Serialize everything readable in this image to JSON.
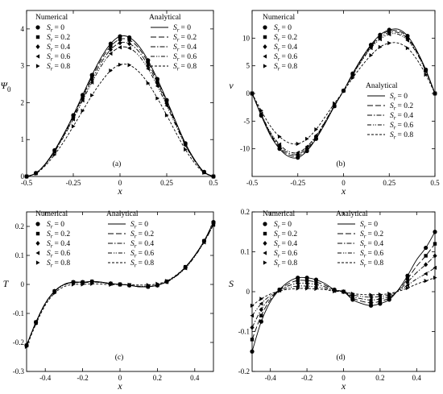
{
  "legend_labels": {
    "numerical": "Numerical",
    "analytical": "Analytical",
    "sym": "S",
    "sub": "r",
    "values": [
      "= 0",
      "= 0.2",
      "= 0.4",
      "= 0.6",
      "= 0.8"
    ]
  },
  "chart_data": [
    {
      "type": "line",
      "panel_label": "(a)",
      "xlabel": "x",
      "ylabel": "Ψ",
      "ylabel_sub": "0",
      "xlim": [
        -0.5,
        0.5
      ],
      "ylim": [
        0,
        4.5
      ],
      "xticks": [
        -0.5,
        -0.25,
        0,
        0.25,
        0.5
      ],
      "xtick_labels": [
        "-0.5",
        "-0.25",
        "0",
        "0.25",
        "0.5"
      ],
      "yticks": [
        0,
        1,
        2,
        3,
        4
      ],
      "ytick_labels": [
        "0",
        "1",
        "2",
        "3",
        "4"
      ],
      "legend_numerical": "top-left",
      "legend_analytical": "top-right",
      "x": [
        -0.5,
        -0.45,
        -0.4,
        -0.35,
        -0.3,
        -0.25,
        -0.2,
        -0.15,
        -0.1,
        -0.05,
        0,
        0.05,
        0.1,
        0.15,
        0.2,
        0.25,
        0.3,
        0.35,
        0.4,
        0.45,
        0.5
      ],
      "series": [
        {
          "name": "Sr = 0",
          "values": [
            0,
            0.09,
            0.34,
            0.71,
            1.16,
            1.66,
            2.21,
            2.75,
            3.23,
            3.6,
            3.8,
            3.77,
            3.54,
            3.15,
            2.64,
            2.07,
            1.47,
            0.9,
            0.45,
            0.12,
            0
          ]
        },
        {
          "name": "Sr = 0.2",
          "values": [
            0,
            0.09,
            0.34,
            0.7,
            1.14,
            1.64,
            2.17,
            2.7,
            3.17,
            3.53,
            3.72,
            3.7,
            3.48,
            3.09,
            2.59,
            2.03,
            1.44,
            0.88,
            0.44,
            0.12,
            0
          ]
        },
        {
          "name": "Sr = 0.4",
          "values": [
            0,
            0.09,
            0.33,
            0.69,
            1.12,
            1.6,
            2.12,
            2.63,
            3.09,
            3.44,
            3.62,
            3.6,
            3.39,
            3.01,
            2.53,
            1.98,
            1.41,
            0.86,
            0.43,
            0.12,
            0
          ]
        },
        {
          "name": "Sr = 0.6",
          "values": [
            0,
            0.09,
            0.32,
            0.67,
            1.09,
            1.55,
            2.06,
            2.55,
            3.0,
            3.33,
            3.5,
            3.48,
            3.28,
            2.92,
            2.45,
            1.92,
            1.37,
            0.84,
            0.42,
            0.11,
            0
          ]
        },
        {
          "name": "Sr = 0.8",
          "values": [
            0,
            0.08,
            0.29,
            0.59,
            0.95,
            1.36,
            1.78,
            2.2,
            2.57,
            2.87,
            3.03,
            3.02,
            2.84,
            2.53,
            2.12,
            1.66,
            1.18,
            0.73,
            0.36,
            0.1,
            0
          ]
        }
      ]
    },
    {
      "type": "line",
      "panel_label": "(b)",
      "xlabel": "x",
      "ylabel": "v",
      "xlim": [
        -0.5,
        0.5
      ],
      "ylim": [
        -15,
        15
      ],
      "xticks": [
        -0.5,
        -0.25,
        0,
        0.25,
        0.5
      ],
      "xtick_labels": [
        "-0.5",
        "-0.25",
        "0",
        "0.25",
        "0.5"
      ],
      "yticks": [
        -10,
        -5,
        0,
        5,
        10
      ],
      "ytick_labels": [
        "-10",
        "-5",
        "0",
        "5",
        "10"
      ],
      "legend_numerical": "top-left",
      "legend_analytical": "right",
      "x": [
        -0.5,
        -0.45,
        -0.4,
        -0.35,
        -0.3,
        -0.25,
        -0.2,
        -0.15,
        -0.1,
        -0.05,
        0,
        0.05,
        0.1,
        0.15,
        0.2,
        0.25,
        0.3,
        0.35,
        0.4,
        0.45,
        0.5
      ],
      "series": [
        {
          "name": "Sr = 0",
          "values": [
            0,
            -4.0,
            -7.6,
            -10.0,
            -11.4,
            -11.6,
            -10.4,
            -8.2,
            -5.4,
            -2.3,
            0.5,
            3.6,
            6.4,
            8.8,
            10.6,
            11.5,
            11.6,
            10.4,
            7.8,
            4.3,
            0
          ]
        },
        {
          "name": "Sr = 0.2",
          "values": [
            0,
            -3.9,
            -7.4,
            -9.8,
            -11.1,
            -11.3,
            -10.2,
            -8.0,
            -5.3,
            -2.3,
            0.5,
            3.5,
            6.3,
            8.6,
            10.4,
            11.3,
            11.3,
            10.2,
            7.7,
            4.2,
            0
          ]
        },
        {
          "name": "Sr = 0.4",
          "values": [
            0,
            -3.8,
            -7.2,
            -9.5,
            -10.8,
            -11.0,
            -9.9,
            -7.8,
            -5.1,
            -2.2,
            0.5,
            3.4,
            6.1,
            8.4,
            10.1,
            11.0,
            11.0,
            9.9,
            7.5,
            4.1,
            0
          ]
        },
        {
          "name": "Sr = 0.6",
          "values": [
            0,
            -3.7,
            -7.0,
            -9.2,
            -10.5,
            -10.7,
            -9.6,
            -7.6,
            -5.0,
            -2.1,
            0.5,
            3.3,
            5.9,
            8.2,
            9.8,
            10.7,
            10.7,
            9.6,
            7.3,
            4.0,
            0
          ]
        },
        {
          "name": "Sr = 0.8",
          "values": [
            0,
            -3.1,
            -5.9,
            -7.8,
            -8.9,
            -9.1,
            -8.2,
            -6.5,
            -4.2,
            -1.8,
            0.4,
            2.8,
            5.0,
            6.9,
            8.4,
            9.1,
            9.1,
            8.2,
            6.2,
            3.4,
            0
          ]
        }
      ]
    },
    {
      "type": "line",
      "panel_label": "(c)",
      "xlabel": "x",
      "ylabel": "T",
      "xlim": [
        -0.5,
        0.5
      ],
      "ylim": [
        -0.3,
        0.25
      ],
      "xticks": [
        -0.4,
        -0.2,
        0,
        0.2,
        0.4
      ],
      "xtick_labels": [
        "-0.4",
        "-0.2",
        "0",
        "0.2",
        "0.4"
      ],
      "yticks": [
        -0.3,
        -0.2,
        -0.1,
        0,
        0.1,
        0.2
      ],
      "ytick_labels": [
        "-0.3",
        "-0.2",
        "-0.1",
        "0",
        "0.1",
        "0.2"
      ],
      "legend_numerical": "top-left",
      "legend_analytical": "top-center",
      "x": [
        -0.5,
        -0.45,
        -0.4,
        -0.35,
        -0.3,
        -0.25,
        -0.2,
        -0.15,
        -0.1,
        -0.05,
        0,
        0.05,
        0.1,
        0.15,
        0.2,
        0.25,
        0.3,
        0.35,
        0.4,
        0.45,
        0.5
      ],
      "series": [
        {
          "name": "Sr = 0",
          "values": [
            -0.21,
            -0.13,
            -0.065,
            -0.023,
            0.0,
            0.008,
            0.008,
            0.01,
            0.008,
            0.003,
            0.0,
            -0.003,
            -0.008,
            -0.008,
            -0.003,
            0.01,
            0.03,
            0.06,
            0.1,
            0.15,
            0.215
          ]
        },
        {
          "name": "Sr = 0.2",
          "values": [
            -0.21,
            -0.13,
            -0.065,
            -0.023,
            0.0,
            0.008,
            0.008,
            0.01,
            0.008,
            0.003,
            0.0,
            -0.003,
            -0.008,
            -0.008,
            -0.003,
            0.01,
            0.03,
            0.06,
            0.1,
            0.15,
            0.213
          ]
        },
        {
          "name": "Sr = 0.4",
          "values": [
            -0.21,
            -0.131,
            -0.066,
            -0.024,
            -0.001,
            0.007,
            0.007,
            0.009,
            0.007,
            0.003,
            0.0,
            -0.003,
            -0.007,
            -0.007,
            -0.003,
            0.009,
            0.029,
            0.058,
            0.098,
            0.148,
            0.21
          ]
        },
        {
          "name": "Sr = 0.6",
          "values": [
            -0.21,
            -0.132,
            -0.067,
            -0.025,
            -0.002,
            0.006,
            0.006,
            0.008,
            0.006,
            0.002,
            0.0,
            -0.002,
            -0.006,
            -0.006,
            -0.002,
            0.008,
            0.028,
            0.056,
            0.096,
            0.145,
            0.205
          ]
        },
        {
          "name": "Sr = 0.8",
          "values": [
            -0.215,
            -0.137,
            -0.072,
            -0.03,
            -0.008,
            0.0,
            0.0,
            0.002,
            0.001,
            -0.001,
            0.0,
            -0.001,
            -0.002,
            -0.002,
            0.002,
            0.012,
            0.032,
            0.06,
            0.1,
            0.148,
            0.205
          ]
        }
      ]
    },
    {
      "type": "line",
      "panel_label": "(d)",
      "xlabel": "x",
      "ylabel": "S",
      "xlim": [
        -0.5,
        0.5
      ],
      "ylim": [
        -0.2,
        0.2
      ],
      "xticks": [
        -0.4,
        -0.2,
        0,
        0.2,
        0.4
      ],
      "xtick_labels": [
        "-0.4",
        "-0.2",
        "0",
        "0.2",
        "0.4"
      ],
      "yticks": [
        -0.2,
        -0.1,
        0,
        0.1,
        0.2
      ],
      "ytick_labels": [
        "-0.2",
        "-0.1",
        "0",
        "0.1",
        "0.2"
      ],
      "legend_numerical": "top-left",
      "legend_analytical": "top-center",
      "x": [
        -0.5,
        -0.45,
        -0.4,
        -0.35,
        -0.3,
        -0.25,
        -0.2,
        -0.15,
        -0.1,
        -0.05,
        0,
        0.05,
        0.1,
        0.15,
        0.2,
        0.25,
        0.3,
        0.35,
        0.4,
        0.45,
        0.5
      ],
      "series": [
        {
          "name": "Sr = 0",
          "values": [
            -0.15,
            -0.075,
            -0.025,
            0.005,
            0.025,
            0.035,
            0.035,
            0.03,
            0.02,
            0.005,
            0.0,
            -0.02,
            -0.03,
            -0.035,
            -0.03,
            -0.02,
            0.005,
            0.04,
            0.08,
            0.11,
            0.15
          ]
        },
        {
          "name": "Sr = 0.2",
          "values": [
            -0.12,
            -0.06,
            -0.02,
            0.005,
            0.02,
            0.028,
            0.028,
            0.024,
            0.016,
            0.004,
            0.0,
            -0.016,
            -0.024,
            -0.028,
            -0.024,
            -0.016,
            0.004,
            0.032,
            0.064,
            0.09,
            0.12
          ]
        },
        {
          "name": "Sr = 0.4",
          "values": [
            -0.09,
            -0.045,
            -0.015,
            0.004,
            0.015,
            0.021,
            0.021,
            0.018,
            0.012,
            0.003,
            0.0,
            -0.012,
            -0.018,
            -0.021,
            -0.018,
            -0.012,
            0.003,
            0.024,
            0.048,
            0.068,
            0.09
          ]
        },
        {
          "name": "Sr = 0.6",
          "values": [
            -0.06,
            -0.03,
            -0.01,
            0.003,
            0.01,
            0.014,
            0.014,
            0.012,
            0.008,
            0.002,
            0.0,
            -0.008,
            -0.012,
            -0.014,
            -0.012,
            -0.008,
            0.002,
            0.016,
            0.032,
            0.045,
            0.06
          ]
        },
        {
          "name": "Sr = 0.8",
          "values": [
            -0.035,
            -0.018,
            -0.006,
            0.002,
            0.006,
            0.008,
            0.008,
            0.007,
            0.005,
            0.001,
            0.0,
            -0.005,
            -0.007,
            -0.008,
            -0.007,
            -0.005,
            0.001,
            0.009,
            0.019,
            0.027,
            0.035
          ]
        }
      ]
    }
  ]
}
